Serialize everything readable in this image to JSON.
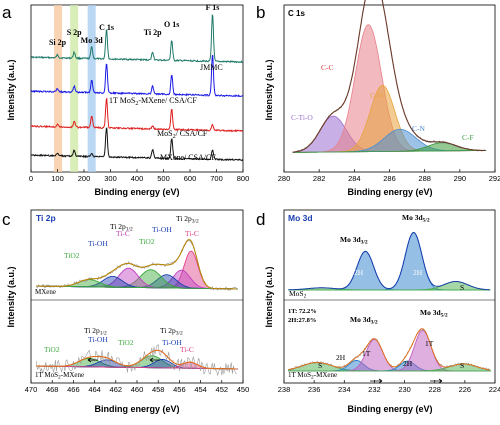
{
  "chart_data": [
    {
      "panel": "a",
      "type": "line",
      "xlabel": "Binding energy (eV)",
      "ylabel": "Intensity (a.u.)",
      "xlim": [
        0,
        800
      ],
      "xticks": [
        "0",
        "100",
        "200",
        "300",
        "400",
        "500",
        "600",
        "700",
        "800"
      ],
      "series": [
        {
          "name": "JMMC",
          "color": "#1f7a6a"
        },
        {
          "name": "1T MoS2-MXene/ CSA/CF",
          "color": "#1a1ae6"
        },
        {
          "name": "MoS2/ CSA/CF",
          "color": "#e01e1e"
        },
        {
          "name": "MXene/ CSA/CF",
          "color": "#111111"
        }
      ],
      "peak_labels": [
        "Si 2p",
        "S 2p",
        "Mo 3d",
        "C 1s",
        "Ti 2p",
        "O 1s",
        "F 1s"
      ],
      "peak_positions": [
        100,
        163,
        229,
        285,
        459,
        531,
        685
      ],
      "highlight_bands": [
        {
          "center": 102,
          "color": "#f6c9a3"
        },
        {
          "center": 163,
          "color": "#cfe8a8"
        },
        {
          "center": 229,
          "color": "#a9cdf0"
        }
      ]
    },
    {
      "panel": "b",
      "type": "line",
      "title": "C 1s",
      "xlabel": "Binding energy (eV)",
      "ylabel": "Intensity (a.u.)",
      "xlim": [
        280,
        292
      ],
      "xticks": [
        "280",
        "282",
        "284",
        "286",
        "288",
        "290",
        "292"
      ],
      "components": [
        {
          "name": "C-Ti-O",
          "center": 282.8,
          "amp": 0.26,
          "width": 0.75,
          "color": "#9b6fd1"
        },
        {
          "name": "C-C",
          "center": 284.8,
          "amp": 0.92,
          "width": 0.75,
          "color": "#e8808a"
        },
        {
          "name": "C-O",
          "center": 285.6,
          "amp": 0.48,
          "width": 0.7,
          "color": "#e8a33a"
        },
        {
          "name": "C-N",
          "center": 286.6,
          "amp": 0.16,
          "width": 0.9,
          "color": "#4a8fd4"
        },
        {
          "name": "C-F",
          "center": 289.0,
          "amp": 0.06,
          "width": 0.8,
          "color": "#3a9a3a"
        }
      ]
    },
    {
      "panel": "c",
      "type": "line",
      "title": "Ti 2p",
      "xlabel": "Binding energy (eV)",
      "ylabel": "Intensity (a.u.)",
      "xlim": [
        470,
        450
      ],
      "xticks": [
        "470",
        "468",
        "466",
        "464",
        "462",
        "460",
        "458",
        "456",
        "454",
        "452",
        "450"
      ],
      "samples": [
        "MXene",
        "1T MoS2-MXene"
      ],
      "labels_top": [
        "Ti 2p3/2",
        "Ti 2p1/2",
        "Ti-C",
        "Ti-OH",
        "TiO2",
        "Ti-OH",
        "TiO2",
        "Ti-C"
      ],
      "labels_bottom": [
        "Ti 2p1/2",
        "Ti 2p3/2",
        "TiO2",
        "Ti-OH",
        "TiO2",
        "Ti-OH",
        "Ti-C"
      ]
    },
    {
      "panel": "d",
      "type": "line",
      "title": "Mo 3d",
      "xlabel": "Binding energy (eV)",
      "ylabel": "Intensity (a.u.)",
      "xlim": [
        238,
        224
      ],
      "xticks": [
        "238",
        "236",
        "234",
        "232",
        "230",
        "228",
        "226",
        "224"
      ],
      "samples": [
        "MoS2",
        "1T MoS2-MXene"
      ],
      "ratio_text": [
        "1T: 72.2%",
        "2H:27.8%"
      ],
      "peak_labels": [
        "Mo 3d3/2",
        "Mo 3d5/2",
        "2H",
        "1T",
        "S"
      ]
    }
  ],
  "panels": {
    "a": {
      "letter": "a",
      "curve_labels": [
        "JMMC",
        "1T MoS2-MXene/ CSA/CF",
        "MoS2/ CSA/CF",
        "MXene/ CSA/CF"
      ]
    },
    "b": {
      "letter": "b",
      "title": "C 1s",
      "labels": [
        "C-C",
        "C-O",
        "C-Ti-O",
        "C-N",
        "C-F"
      ]
    },
    "c": {
      "letter": "c",
      "title": "Ti 2p",
      "sample_top": "MXene",
      "sample_bottom": "1T MoS2-MXene"
    },
    "d": {
      "letter": "d",
      "title": "Mo 3d",
      "sample_top": "MoS2",
      "sample_bottom": "1T MoS2-MXene",
      "ratio_1t": "1T: 72.2%",
      "ratio_2h": "2H:27.8%"
    }
  },
  "axis": {
    "xlabel": "Binding energy (eV)",
    "ylabel": "Intensity (a.u.)"
  }
}
